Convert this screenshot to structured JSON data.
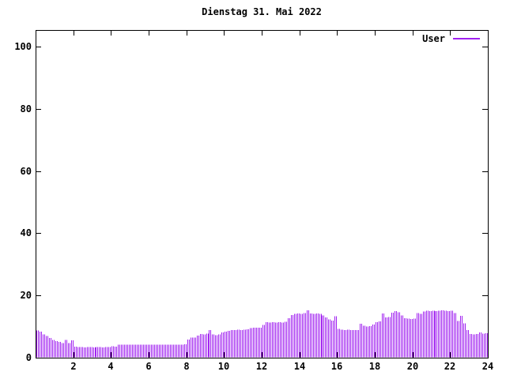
{
  "window": {
    "title": "Dienstag 31. Mai 2022"
  },
  "legend": {
    "label": "User"
  },
  "colors": {
    "bar": "#a020f0",
    "axis": "#000000",
    "background": "#ffffff"
  },
  "chart_data": {
    "type": "bar",
    "title": "Dienstag 31. Mai 2022",
    "xlabel": "",
    "ylabel": "",
    "xlim": [
      0,
      24
    ],
    "ylim": [
      0,
      105
    ],
    "x_ticks": [
      2,
      4,
      6,
      8,
      10,
      12,
      14,
      16,
      18,
      20,
      22,
      24
    ],
    "y_ticks": [
      0,
      20,
      40,
      60,
      80,
      100
    ],
    "grid": false,
    "legend_position": "top-right",
    "bar_color": "#a020f0",
    "sample_interval_minutes": 10,
    "series": [
      {
        "name": "User",
        "start_hour": 0,
        "step_hours": 0.166667,
        "values": [
          8.6,
          8.2,
          7.4,
          6.8,
          6.2,
          5.6,
          5.2,
          5.0,
          4.6,
          5.6,
          4.6,
          5.4,
          3.4,
          3.3,
          3.3,
          3.2,
          3.3,
          3.3,
          3.2,
          3.3,
          3.3,
          3.2,
          3.3,
          3.3,
          3.6,
          3.4,
          4.0,
          4.1,
          4.1,
          4.0,
          4.1,
          4.1,
          4.0,
          4.1,
          4.1,
          4.1,
          4.1,
          4.0,
          4.1,
          4.1,
          4.1,
          4.0,
          4.1,
          4.1,
          4.0,
          4.1,
          4.1,
          4.2,
          5.7,
          6.3,
          6.4,
          7.0,
          7.5,
          7.4,
          7.6,
          8.7,
          7.3,
          7.1,
          7.4,
          8.0,
          8.3,
          8.5,
          8.8,
          8.8,
          8.9,
          8.8,
          8.9,
          9.0,
          9.4,
          9.5,
          9.5,
          9.5,
          10.4,
          11.3,
          11.2,
          11.3,
          11.2,
          11.3,
          11.2,
          11.4,
          12.6,
          13.6,
          14.0,
          14.1,
          14.0,
          14.2,
          15.1,
          14.1,
          14.0,
          14.1,
          14.0,
          13.5,
          12.8,
          12.2,
          11.8,
          13.2,
          9.2,
          8.9,
          8.8,
          8.9,
          8.7,
          8.8,
          8.7,
          10.8,
          10.2,
          9.9,
          10.0,
          10.5,
          11.3,
          11.5,
          14.1,
          12.8,
          13.0,
          14.3,
          14.8,
          14.5,
          13.5,
          12.6,
          12.4,
          12.3,
          12.5,
          14.2,
          13.9,
          14.7,
          15.0,
          14.9,
          15.0,
          14.9,
          15.0,
          15.1,
          15.0,
          14.9,
          15.0,
          14.2,
          11.7,
          13.3,
          10.9,
          8.8,
          7.5,
          7.4,
          7.5,
          8.0,
          7.6,
          7.7
        ]
      }
    ]
  }
}
